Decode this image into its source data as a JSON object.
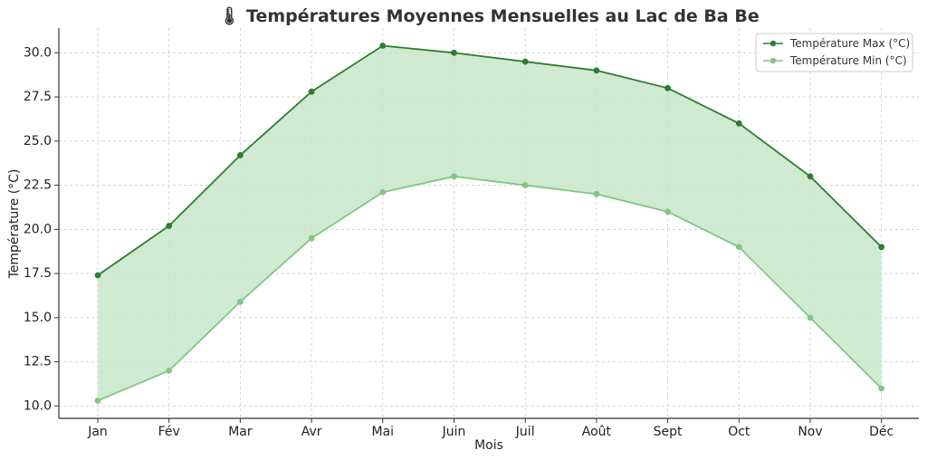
{
  "chart_data": {
    "type": "line",
    "title": "🌡 Températures Moyennes Mensuelles au Lac de Ba Be",
    "xlabel": "Mois",
    "ylabel": "Température (°C)",
    "categories": [
      "Jan",
      "Fév",
      "Mar",
      "Avr",
      "Mai",
      "Juin",
      "Juil",
      "Août",
      "Sept",
      "Oct",
      "Nov",
      "Déc"
    ],
    "ylim": [
      9.3,
      31.4
    ],
    "yticks": [
      "10.0",
      "12.5",
      "15.0",
      "17.5",
      "20.0",
      "22.5",
      "25.0",
      "27.5",
      "30.0"
    ],
    "grid": true,
    "legend_position": "top-right",
    "fill_between": true,
    "series": [
      {
        "name": "Température Max (°C)",
        "values": [
          17.4,
          20.2,
          24.2,
          27.8,
          30.4,
          30.0,
          29.5,
          29.0,
          28.0,
          26.0,
          23.0,
          19.0
        ],
        "color": "#2e7d32"
      },
      {
        "name": "Température Min (°C)",
        "values": [
          10.3,
          12.0,
          15.9,
          19.5,
          22.1,
          23.0,
          22.5,
          22.0,
          21.0,
          19.0,
          15.0,
          11.0
        ],
        "color": "#81c784"
      }
    ],
    "fill_color": "#c8e6c9"
  }
}
